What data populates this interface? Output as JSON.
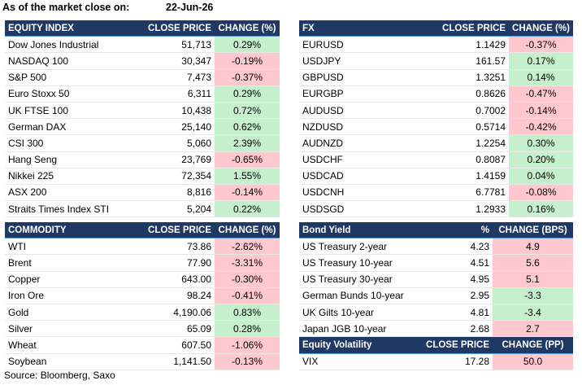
{
  "header": {
    "title": "As of the market close on:",
    "date": "22-Jun-26"
  },
  "footer": {
    "source": "Source: Bloomberg, Saxo"
  },
  "colors": {
    "header_bg": "#1f3864",
    "positive_bg": "#c6efce",
    "negative_bg": "#ffc7ce"
  },
  "equity": {
    "headers": [
      "EQUITY INDEX",
      "CLOSE PRICE",
      "CHANGE (%)"
    ],
    "rows": [
      {
        "name": "Dow Jones Industrial",
        "price": "51,713",
        "change": "0.29%",
        "sign": "pos"
      },
      {
        "name": "NASDAQ 100",
        "price": "30,347",
        "change": "-0.19%",
        "sign": "neg"
      },
      {
        "name": "S&P 500",
        "price": "7,473",
        "change": "-0.37%",
        "sign": "neg"
      },
      {
        "name": "Euro Stoxx 50",
        "price": "6,311",
        "change": "0.29%",
        "sign": "pos"
      },
      {
        "name": "UK FTSE 100",
        "price": "10,438",
        "change": "0.72%",
        "sign": "pos"
      },
      {
        "name": "German DAX",
        "price": "25,140",
        "change": "0.62%",
        "sign": "pos"
      },
      {
        "name": "CSI 300",
        "price": "5,060",
        "change": "2.39%",
        "sign": "pos"
      },
      {
        "name": "Hang Seng",
        "price": "23,769",
        "change": "-0.65%",
        "sign": "neg"
      },
      {
        "name": "Nikkei 225",
        "price": "72,354",
        "change": "1.55%",
        "sign": "pos"
      },
      {
        "name": "ASX 200",
        "price": "8,816",
        "change": "-0.14%",
        "sign": "neg"
      },
      {
        "name": "Straits Times Index STI",
        "price": "5,204",
        "change": "0.22%",
        "sign": "pos"
      }
    ]
  },
  "fx": {
    "headers": [
      "FX",
      "CLOSE PRICE",
      "CHANGE (%)"
    ],
    "rows": [
      {
        "name": "EURUSD",
        "price": "1.1429",
        "change": "-0.37%",
        "sign": "neg"
      },
      {
        "name": "USDJPY",
        "price": "161.57",
        "change": "0.17%",
        "sign": "pos"
      },
      {
        "name": "GBPUSD",
        "price": "1.3251",
        "change": "0.14%",
        "sign": "pos"
      },
      {
        "name": "EURGBP",
        "price": "0.8626",
        "change": "-0.47%",
        "sign": "neg"
      },
      {
        "name": "AUDUSD",
        "price": "0.7002",
        "change": "-0.14%",
        "sign": "neg"
      },
      {
        "name": "NZDUSD",
        "price": "0.5714",
        "change": "-0.42%",
        "sign": "neg"
      },
      {
        "name": "AUDNZD",
        "price": "1.2254",
        "change": "0.30%",
        "sign": "pos"
      },
      {
        "name": "USDCHF",
        "price": "0.8087",
        "change": "0.20%",
        "sign": "pos"
      },
      {
        "name": "USDCAD",
        "price": "1.4159",
        "change": "0.04%",
        "sign": "pos"
      },
      {
        "name": "USDCNH",
        "price": "6.7781",
        "change": "-0.08%",
        "sign": "neg"
      },
      {
        "name": "USDSGD",
        "price": "1.2933",
        "change": "0.16%",
        "sign": "pos"
      }
    ]
  },
  "commodity": {
    "headers": [
      "COMMODITY",
      "CLOSE PRICE",
      "CHANGE (%)"
    ],
    "rows": [
      {
        "name": "WTI",
        "price": "73.86",
        "change": "-2.62%",
        "sign": "neg"
      },
      {
        "name": "Brent",
        "price": "77.90",
        "change": "-3.31%",
        "sign": "neg"
      },
      {
        "name": "Copper",
        "price": "643.00",
        "change": "-0.30%",
        "sign": "neg"
      },
      {
        "name": "Iron Ore",
        "price": "98.24",
        "change": "-0.41%",
        "sign": "neg"
      },
      {
        "name": "Gold",
        "price": "4,190.06",
        "change": "0.83%",
        "sign": "pos"
      },
      {
        "name": "Silver",
        "price": "65.09",
        "change": "0.28%",
        "sign": "pos"
      },
      {
        "name": "Wheat",
        "price": "607.50",
        "change": "-1.06%",
        "sign": "neg"
      },
      {
        "name": "Soybean",
        "price": "1,141.50",
        "change": "-0.13%",
        "sign": "neg"
      }
    ]
  },
  "bond": {
    "headers": [
      "Bond Yield",
      "%",
      "CHANGE (BPS)"
    ],
    "rows": [
      {
        "name": "US Treasury 2-year",
        "price": "4.23",
        "change": "4.9",
        "sign": "neg"
      },
      {
        "name": "US Treasury 10-year",
        "price": "4.51",
        "change": "5.6",
        "sign": "neg"
      },
      {
        "name": "US Treasury 30-year",
        "price": "4.95",
        "change": "5.1",
        "sign": "neg"
      },
      {
        "name": "German Bunds 10-year",
        "price": "2.95",
        "change": "-3.3",
        "sign": "pos"
      },
      {
        "name": "UK Gilts 10-year",
        "price": "4.81",
        "change": "-3.4",
        "sign": "pos"
      },
      {
        "name": "Japan JGB 10-year",
        "price": "2.68",
        "change": "2.7",
        "sign": "neg"
      }
    ]
  },
  "volatility": {
    "headers": [
      "Equity Volatility",
      "CLOSE PRICE",
      "CHANGE (PP)"
    ],
    "rows": [
      {
        "name": "VIX",
        "price": "17.28",
        "change": "50.0",
        "sign": "neg"
      }
    ]
  }
}
